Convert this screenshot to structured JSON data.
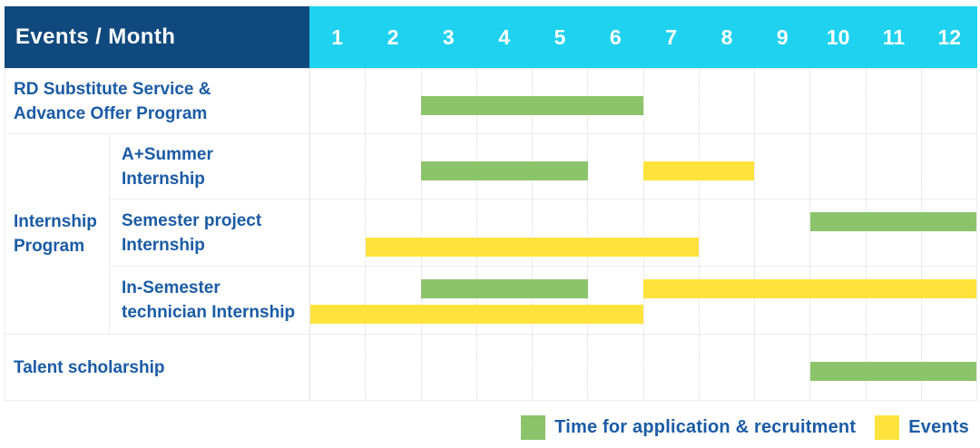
{
  "palette": {
    "header_navy": "#10497E",
    "header_cyan": "#1ED2F0",
    "bar_green": "#8CC46B",
    "bar_yellow": "#FFE33C",
    "label_blue": "#1A5BA6",
    "grid_line": "#ECECEC"
  },
  "header": {
    "title": "Events / Month"
  },
  "chart_data": {
    "type": "gantt",
    "title": "Events / Month",
    "month_labels": [
      "1",
      "2",
      "3",
      "4",
      "5",
      "6",
      "7",
      "8",
      "9",
      "10",
      "11",
      "12"
    ],
    "x_range": [
      1,
      12
    ],
    "legend": [
      {
        "kind": "application",
        "label": "Time for application & recruitment",
        "color": "#8CC46B"
      },
      {
        "kind": "event",
        "label": "Events",
        "color": "#FFE33C"
      }
    ],
    "group": {
      "label": "Internship Program",
      "label_lines": [
        "Internship",
        "Program"
      ],
      "row_ids": [
        "a-plus-summer-internship",
        "semester-project-internship",
        "in-semester-technician-internship"
      ]
    },
    "rows": [
      {
        "id": "rd-substitute-advance-offer",
        "label": "RD Substitute Service & Advance Offer Program",
        "label_lines": [
          "RD Substitute Service &",
          "Advance Offer Program"
        ],
        "indent": false,
        "bars": [
          {
            "kind": "application",
            "start": 3,
            "end": 6,
            "lane": 0
          }
        ]
      },
      {
        "id": "a-plus-summer-internship",
        "label": "A+Summer Internship",
        "label_lines": [
          "A+Summer",
          "Internship"
        ],
        "indent": true,
        "bars": [
          {
            "kind": "application",
            "start": 3,
            "end": 5,
            "lane": 0
          },
          {
            "kind": "event",
            "start": 7,
            "end": 8,
            "lane": 0
          }
        ]
      },
      {
        "id": "semester-project-internship",
        "label": "Semester project Internship",
        "label_lines": [
          "Semester project",
          "Internship"
        ],
        "indent": true,
        "bars": [
          {
            "kind": "application",
            "start": 10,
            "end": 12,
            "lane": 0
          },
          {
            "kind": "event",
            "start": 2,
            "end": 7,
            "lane": 1
          }
        ]
      },
      {
        "id": "in-semester-technician-internship",
        "label": "In-Semester technician Internship",
        "label_lines": [
          "In-Semester",
          "technician Internship"
        ],
        "indent": true,
        "bars": [
          {
            "kind": "application",
            "start": 3,
            "end": 5,
            "lane": 0
          },
          {
            "kind": "event",
            "start": 7,
            "end": 12,
            "lane": 0
          },
          {
            "kind": "event",
            "start": 1,
            "end": 6,
            "lane": 1
          }
        ]
      },
      {
        "id": "talent-scholarship",
        "label": "Talent scholarship",
        "label_lines": [
          "Talent scholarship"
        ],
        "indent": false,
        "bars": [
          {
            "kind": "application",
            "start": 10,
            "end": 12,
            "lane": 0
          }
        ]
      }
    ]
  }
}
